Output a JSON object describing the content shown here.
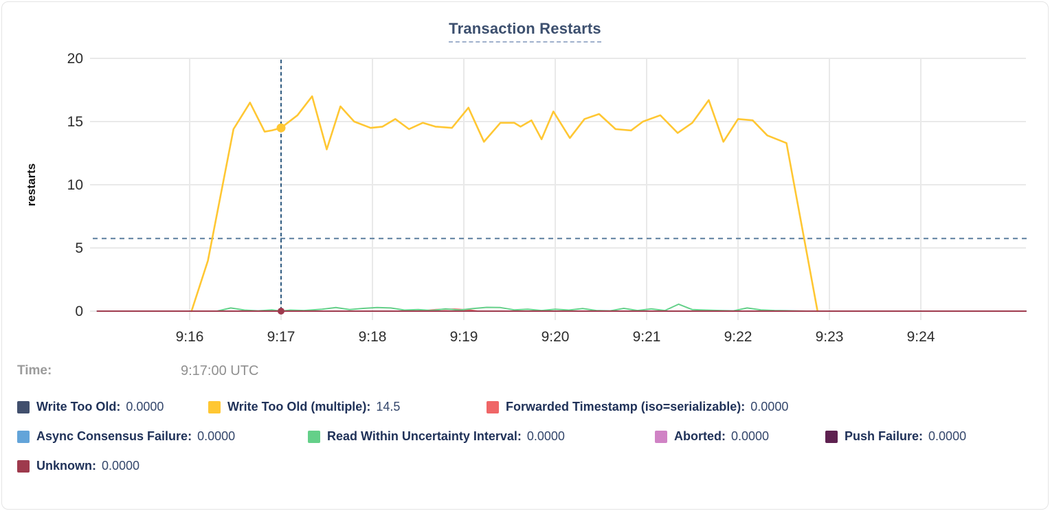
{
  "title": "Transaction Restarts",
  "time_row": {
    "label": "Time:",
    "value": "9:17:00 UTC"
  },
  "chart_data": {
    "type": "line",
    "title": "Transaction Restarts",
    "xlabel": "",
    "ylabel": "restarts",
    "ylim": [
      0,
      20
    ],
    "yticks": [
      0,
      5,
      10,
      15,
      20
    ],
    "grid": true,
    "legend_position": "bottom",
    "x_unit": "minutes-after-9:00-UTC",
    "xticks": [
      {
        "t": 16,
        "label": "9:16"
      },
      {
        "t": 17,
        "label": "9:17"
      },
      {
        "t": 18,
        "label": "9:18"
      },
      {
        "t": 19,
        "label": "9:19"
      },
      {
        "t": 20,
        "label": "9:20"
      },
      {
        "t": 21,
        "label": "9:21"
      },
      {
        "t": 22,
        "label": "9:22"
      },
      {
        "t": 23,
        "label": "9:23"
      },
      {
        "t": 24,
        "label": "9:24"
      }
    ],
    "x_domain": [
      14.95,
      25.15
    ],
    "reference_line_y": 5.75,
    "crosshair": {
      "t": 17,
      "time_label": "9:17:00 UTC",
      "dots": [
        {
          "series": "Write Too Old (multiple)",
          "value": 14.5
        },
        {
          "series": "Unknown",
          "value": 0
        }
      ]
    },
    "series": [
      {
        "name": "Write Too Old",
        "color": "#414f6d",
        "cursor_value": "0.0000",
        "points": [
          [
            14.99,
            0
          ],
          [
            25.15,
            0
          ]
        ]
      },
      {
        "name": "Write Too Old (multiple)",
        "color": "#ffc733",
        "cursor_value": "14.5",
        "points": [
          [
            16.02,
            0
          ],
          [
            16.2,
            4.0
          ],
          [
            16.48,
            14.4
          ],
          [
            16.66,
            16.5
          ],
          [
            16.82,
            14.2
          ],
          [
            16.9,
            14.3
          ],
          [
            17.0,
            14.5
          ],
          [
            17.18,
            15.5
          ],
          [
            17.34,
            17.0
          ],
          [
            17.5,
            12.8
          ],
          [
            17.65,
            16.2
          ],
          [
            17.8,
            15.0
          ],
          [
            17.98,
            14.5
          ],
          [
            18.11,
            14.6
          ],
          [
            18.25,
            15.2
          ],
          [
            18.4,
            14.4
          ],
          [
            18.55,
            14.9
          ],
          [
            18.69,
            14.6
          ],
          [
            18.87,
            14.5
          ],
          [
            19.05,
            16.1
          ],
          [
            19.22,
            13.4
          ],
          [
            19.4,
            14.9
          ],
          [
            19.55,
            14.9
          ],
          [
            19.62,
            14.6
          ],
          [
            19.74,
            15.1
          ],
          [
            19.85,
            13.6
          ],
          [
            19.98,
            15.8
          ],
          [
            20.16,
            13.7
          ],
          [
            20.32,
            15.2
          ],
          [
            20.48,
            15.6
          ],
          [
            20.66,
            14.4
          ],
          [
            20.83,
            14.3
          ],
          [
            20.96,
            15.0
          ],
          [
            21.15,
            15.5
          ],
          [
            21.34,
            14.1
          ],
          [
            21.5,
            14.9
          ],
          [
            21.68,
            16.7
          ],
          [
            21.84,
            13.4
          ],
          [
            22.0,
            15.2
          ],
          [
            22.16,
            15.1
          ],
          [
            22.32,
            13.9
          ],
          [
            22.53,
            13.3
          ],
          [
            22.87,
            0
          ]
        ]
      },
      {
        "name": "Forwarded Timestamp (iso=serializable)",
        "color": "#ef6667",
        "cursor_value": "0.0000",
        "points": [
          [
            14.99,
            0
          ],
          [
            18.5,
            0
          ],
          [
            18.7,
            0.12
          ],
          [
            18.9,
            0.16
          ],
          [
            19.05,
            0.1
          ],
          [
            19.15,
            0
          ],
          [
            25.15,
            0
          ]
        ]
      },
      {
        "name": "Async Consensus Failure",
        "color": "#63a4d9",
        "cursor_value": "0.0000",
        "points": [
          [
            14.99,
            0
          ],
          [
            25.15,
            0
          ]
        ]
      },
      {
        "name": "Read Within Uncertainty Interval",
        "color": "#64d089",
        "cursor_value": "0.0000",
        "points": [
          [
            14.99,
            0
          ],
          [
            16.3,
            0
          ],
          [
            16.45,
            0.25
          ],
          [
            16.6,
            0.08
          ],
          [
            16.75,
            0.02
          ],
          [
            16.9,
            0.1
          ],
          [
            17.0,
            0.0
          ],
          [
            17.1,
            0.08
          ],
          [
            17.25,
            0.05
          ],
          [
            17.45,
            0.15
          ],
          [
            17.6,
            0.28
          ],
          [
            17.75,
            0.12
          ],
          [
            17.9,
            0.22
          ],
          [
            18.05,
            0.28
          ],
          [
            18.2,
            0.25
          ],
          [
            18.35,
            0.08
          ],
          [
            18.5,
            0.12
          ],
          [
            18.65,
            0.05
          ],
          [
            18.8,
            0.18
          ],
          [
            18.95,
            0.08
          ],
          [
            19.1,
            0.2
          ],
          [
            19.25,
            0.3
          ],
          [
            19.4,
            0.28
          ],
          [
            19.55,
            0.1
          ],
          [
            19.7,
            0.15
          ],
          [
            19.85,
            0.05
          ],
          [
            20.0,
            0.15
          ],
          [
            20.15,
            0.08
          ],
          [
            20.3,
            0.2
          ],
          [
            20.45,
            0.05
          ],
          [
            20.6,
            0.02
          ],
          [
            20.75,
            0.22
          ],
          [
            20.9,
            0.05
          ],
          [
            21.05,
            0.18
          ],
          [
            21.2,
            0.05
          ],
          [
            21.35,
            0.55
          ],
          [
            21.5,
            0.12
          ],
          [
            21.65,
            0.08
          ],
          [
            21.8,
            0.05
          ],
          [
            21.95,
            0.02
          ],
          [
            22.1,
            0.25
          ],
          [
            22.25,
            0.1
          ],
          [
            22.4,
            0.05
          ],
          [
            22.6,
            0.02
          ],
          [
            22.75,
            0
          ],
          [
            25.15,
            0
          ]
        ]
      },
      {
        "name": "Aborted",
        "color": "#d083c5",
        "cursor_value": "0.0000",
        "points": [
          [
            14.99,
            0
          ],
          [
            25.15,
            0
          ]
        ]
      },
      {
        "name": "Push Failure",
        "color": "#5e2150",
        "cursor_value": "0.0000",
        "points": [
          [
            14.99,
            0
          ],
          [
            25.15,
            0
          ]
        ]
      },
      {
        "name": "Unknown",
        "color": "#9e3a4d",
        "cursor_value": "0.0000",
        "points": [
          [
            14.99,
            0
          ],
          [
            25.15,
            0
          ]
        ]
      }
    ]
  },
  "legend": {
    "rows": [
      [
        {
          "label": "Write Too Old:",
          "value": "0.0000",
          "color": "#414f6d"
        },
        {
          "label": "Write Too Old (multiple):",
          "value": "14.5",
          "color": "#ffc733"
        },
        {
          "label": "Forwarded Timestamp (iso=serializable):",
          "value": "0.0000",
          "color": "#ef6667"
        }
      ],
      [
        {
          "label": "Async Consensus Failure:",
          "value": "0.0000",
          "color": "#63a4d9"
        },
        {
          "label": "Read Within Uncertainty Interval:",
          "value": "0.0000",
          "color": "#64d089"
        },
        {
          "label": "Aborted:",
          "value": "0.0000",
          "color": "#d083c5"
        },
        {
          "label": "Push Failure:",
          "value": "0.0000",
          "color": "#5e2150"
        }
      ],
      [
        {
          "label": "Unknown:",
          "value": "0.0000",
          "color": "#9e3a4d"
        }
      ]
    ]
  },
  "colors": {
    "title": "#3c4f6e",
    "grid": "#e9e9e9",
    "axis_text": "#2d2d2d",
    "crosshair": "#2e5a80",
    "reference_line": "#5b7e9e"
  }
}
